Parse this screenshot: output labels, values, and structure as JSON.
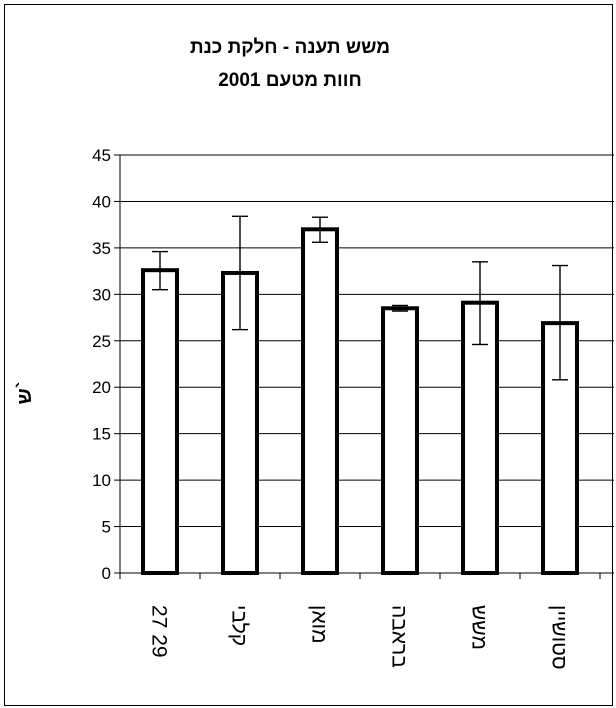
{
  "chart_data": {
    "type": "bar",
    "title_line1": "משש תענה  -  חלקת כנת",
    "title_line2": "חוות מטעם  2001",
    "ylabel": "ש`",
    "ylim": [
      0,
      45
    ],
    "yticks": [
      0,
      5,
      10,
      15,
      20,
      25,
      30,
      35,
      40,
      45
    ],
    "grid": true,
    "legend": "none",
    "categories": [
      "27   29",
      "קלבי",
      "מואן",
      "בראבה",
      "משש",
      "סטושיין"
    ],
    "values": [
      32.6,
      32.3,
      37.0,
      28.5,
      29.1,
      26.9
    ],
    "error_low": [
      30.5,
      26.2,
      35.6,
      28.2,
      24.6,
      20.8
    ],
    "error_high": [
      34.6,
      38.4,
      38.3,
      28.8,
      33.5,
      33.1
    ],
    "bar_fill": "#ffffff",
    "bar_stroke": "#000000"
  }
}
